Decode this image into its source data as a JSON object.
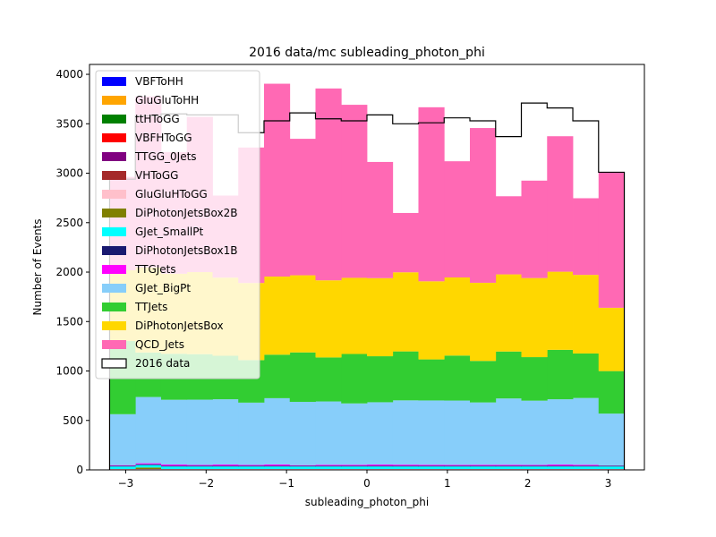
{
  "chart_data": {
    "type": "bar",
    "title": "2016 data/mc subleading_photon_phi",
    "xlabel": "subleading_photon_phi",
    "ylabel": "Number of Events",
    "xlim": [
      -3.45,
      3.45
    ],
    "ylim": [
      0,
      4100
    ],
    "xticks": [
      -3,
      -2,
      -1,
      0,
      1,
      2,
      3
    ],
    "xtick_labels": [
      "−3",
      "−2",
      "−1",
      "0",
      "1",
      "2",
      "3"
    ],
    "yticks": [
      0,
      500,
      1000,
      1500,
      2000,
      2500,
      3000,
      3500,
      4000
    ],
    "ytick_labels": [
      "0",
      "500",
      "1000",
      "1500",
      "2000",
      "2500",
      "3000",
      "3500",
      "4000"
    ],
    "bin_edges": [
      -3.2,
      -2.88,
      -2.56,
      -2.24,
      -1.92,
      -1.6,
      -1.28,
      -0.96,
      -0.64,
      -0.32,
      0.0,
      0.32,
      0.64,
      0.96,
      1.28,
      1.6,
      1.92,
      2.24,
      2.56,
      2.88,
      3.2
    ],
    "legend_position": "top-left",
    "stack_series": [
      {
        "name": "VBFToHH",
        "color": "#0000ff",
        "values": [
          0,
          0,
          0,
          0,
          0,
          0,
          0,
          0,
          0,
          0,
          0,
          0,
          0,
          0,
          0,
          0,
          0,
          0,
          0,
          0
        ]
      },
      {
        "name": "GluGluToHH",
        "color": "#ffa500",
        "values": [
          0,
          0,
          0,
          0,
          0,
          0,
          0,
          0,
          0,
          0,
          0,
          0,
          0,
          0,
          0,
          0,
          0,
          0,
          0,
          0
        ]
      },
      {
        "name": "ttHToGG",
        "color": "#008000",
        "values": [
          2,
          2,
          2,
          2,
          2,
          2,
          2,
          2,
          2,
          2,
          2,
          2,
          2,
          2,
          2,
          2,
          2,
          2,
          2,
          2
        ]
      },
      {
        "name": "VBFHToGG",
        "color": "#ff0000",
        "values": [
          1,
          1,
          1,
          1,
          1,
          1,
          1,
          1,
          1,
          1,
          1,
          1,
          1,
          1,
          1,
          1,
          1,
          1,
          1,
          1
        ]
      },
      {
        "name": "TTGG_0Jets",
        "color": "#800080",
        "values": [
          1,
          1,
          1,
          1,
          1,
          1,
          1,
          1,
          1,
          1,
          1,
          1,
          1,
          1,
          1,
          1,
          1,
          1,
          1,
          1
        ]
      },
      {
        "name": "VHToGG",
        "color": "#a52a2a",
        "values": [
          1,
          1,
          1,
          1,
          1,
          1,
          1,
          1,
          1,
          1,
          1,
          1,
          1,
          1,
          1,
          1,
          1,
          1,
          1,
          1
        ]
      },
      {
        "name": "GluGluHToGG",
        "color": "#ffc0cb",
        "values": [
          4,
          4,
          4,
          4,
          4,
          4,
          4,
          4,
          4,
          4,
          4,
          4,
          4,
          4,
          4,
          4,
          4,
          4,
          4,
          4
        ]
      },
      {
        "name": "DiPhotonJetsBox2B",
        "color": "#808000",
        "values": [
          0,
          15,
          0,
          0,
          0,
          0,
          0,
          0,
          0,
          0,
          0,
          0,
          0,
          0,
          0,
          0,
          0,
          0,
          0,
          0
        ]
      },
      {
        "name": "GJet_SmallPt",
        "color": "#00ffff",
        "values": [
          25,
          25,
          25,
          25,
          25,
          25,
          25,
          25,
          25,
          25,
          25,
          25,
          25,
          25,
          25,
          25,
          25,
          25,
          25,
          25
        ]
      },
      {
        "name": "DiPhotonJetsBox1B",
        "color": "#191970",
        "values": [
          8,
          8,
          8,
          8,
          8,
          8,
          8,
          8,
          8,
          8,
          8,
          8,
          8,
          8,
          8,
          8,
          8,
          8,
          8,
          8
        ]
      },
      {
        "name": "TTGJets",
        "color": "#ff00ff",
        "values": [
          6,
          10,
          12,
          8,
          12,
          8,
          13,
          6,
          10,
          10,
          12,
          11,
          10,
          9,
          10,
          10,
          8,
          12,
          10,
          2
        ]
      },
      {
        "name": "GJet_BigPt",
        "color": "#87cefa",
        "values": [
          515,
          670,
          655,
          660,
          660,
          630,
          670,
          640,
          640,
          620,
          630,
          650,
          650,
          650,
          630,
          670,
          650,
          660,
          675,
          525
        ]
      },
      {
        "name": "TTJets",
        "color": "#32cd32",
        "values": [
          740,
          450,
          465,
          460,
          440,
          430,
          440,
          500,
          445,
          500,
          465,
          495,
          415,
          455,
          420,
          475,
          440,
          500,
          450,
          430
        ]
      },
      {
        "name": "DiPhotonJetsBox",
        "color": "#ffd700",
        "values": [
          715,
          860,
          810,
          830,
          790,
          780,
          790,
          780,
          780,
          770,
          790,
          800,
          790,
          790,
          790,
          780,
          800,
          790,
          795,
          640
        ]
      },
      {
        "name": "QCD_Jets",
        "color": "#ff69b4",
        "values": [
          945,
          1730,
          1230,
          1570,
          830,
          1370,
          1950,
          1380,
          1940,
          1750,
          1175,
          600,
          1760,
          1175,
          1565,
          790,
          985,
          1370,
          775,
          1370
        ]
      }
    ],
    "data_series": {
      "name": "2016 data",
      "color": "#000000",
      "values": [
        2940,
        3580,
        3600,
        3590,
        3590,
        3410,
        3530,
        3610,
        3550,
        3530,
        3590,
        3500,
        3510,
        3560,
        3530,
        3370,
        3710,
        3660,
        3530,
        3010
      ]
    }
  }
}
